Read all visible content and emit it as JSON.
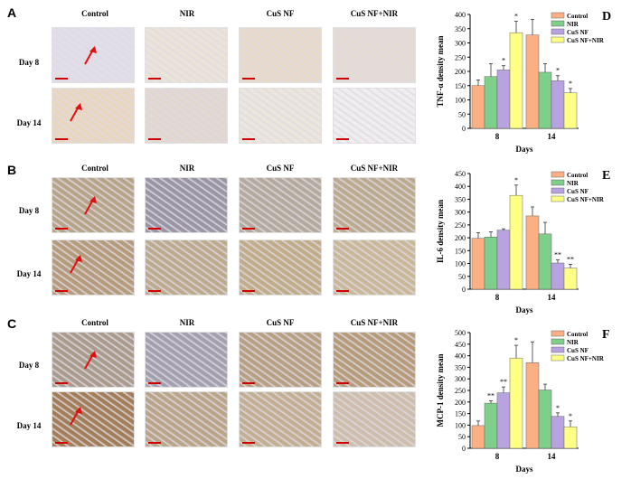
{
  "panels": {
    "A": {
      "label": "A",
      "columns": [
        "Control",
        "NIR",
        "CuS NF",
        "CuS NF+NIR"
      ],
      "rows": [
        "Day 8",
        "Day 14"
      ],
      "tones": [
        [
          "#e2dde8",
          "#ece3d8",
          "#e8dac6",
          "#e5dbd3"
        ],
        [
          "#ead6be",
          "#e2d7cf",
          "#ece6dc",
          "#f0edf0"
        ]
      ]
    },
    "B": {
      "label": "B",
      "columns": [
        "Control",
        "NIR",
        "CuS NF",
        "CuS NF+NIR"
      ],
      "rows": [
        "Day 8",
        "Day 14"
      ],
      "tones": [
        [
          "#b7a488",
          "#9a94a4",
          "#b3a99d",
          "#bcaa8f"
        ],
        [
          "#b59a7b",
          "#bda98c",
          "#c1ab88",
          "#c9b797"
        ]
      ]
    },
    "C": {
      "label": "C",
      "columns": [
        "Control",
        "NIR",
        "CuS NF",
        "CuS NF+NIR"
      ],
      "rows": [
        "Day 8",
        "Day 14"
      ],
      "tones": [
        [
          "#a99a8c",
          "#a49fae",
          "#b79f82",
          "#b69a7a"
        ],
        [
          "#a27d58",
          "#b9a487",
          "#c3ae91",
          "#cdbdaa"
        ]
      ]
    }
  },
  "colors": {
    "control": "#fab083",
    "nir": "#7fce8a",
    "cusnf": "#b8a3e0",
    "cusnf_nir": "#ffff85",
    "arrow": "#e01010"
  },
  "chart_data": [
    {
      "panel": "D",
      "type": "bar",
      "ylabel": "TNF-α density mean",
      "xlabel": "Days",
      "categories": [
        "8",
        "14"
      ],
      "ylim": [
        0,
        400
      ],
      "yticks": [
        0,
        50,
        100,
        150,
        200,
        250,
        300,
        350,
        400
      ],
      "series": [
        {
          "name": "Control",
          "values": [
            150,
            328
          ],
          "errors": [
            20,
            55
          ]
        },
        {
          "name": "NIR",
          "values": [
            182,
            197
          ],
          "errors": [
            45,
            30
          ]
        },
        {
          "name": "CuS NF",
          "values": [
            205,
            167
          ],
          "errors": [
            15,
            18
          ],
          "marks": [
            "*",
            "*"
          ]
        },
        {
          "name": "CuS NF+NIR",
          "values": [
            336,
            125
          ],
          "errors": [
            40,
            15
          ],
          "marks": [
            "*",
            "*"
          ]
        }
      ]
    },
    {
      "panel": "E",
      "type": "bar",
      "ylabel": "IL-6 density mean",
      "xlabel": "Days",
      "categories": [
        "8",
        "14"
      ],
      "ylim": [
        0,
        450
      ],
      "yticks": [
        0,
        50,
        100,
        150,
        200,
        250,
        300,
        350,
        400,
        450
      ],
      "series": [
        {
          "name": "Control",
          "values": [
            198,
            285
          ],
          "errors": [
            22,
            35
          ]
        },
        {
          "name": "NIR",
          "values": [
            203,
            215
          ],
          "errors": [
            20,
            45
          ]
        },
        {
          "name": "CuS NF",
          "values": [
            230,
            102
          ],
          "errors": [
            5,
            12
          ],
          "marks": [
            "",
            "**"
          ]
        },
        {
          "name": "CuS NF+NIR",
          "values": [
            365,
            82
          ],
          "errors": [
            40,
            15
          ],
          "marks": [
            "*",
            "**"
          ]
        }
      ]
    },
    {
      "panel": "F",
      "type": "bar",
      "ylabel": "MCP-1 density mean",
      "xlabel": "Days",
      "categories": [
        "8",
        "14"
      ],
      "ylim": [
        0,
        500
      ],
      "yticks": [
        0,
        50,
        100,
        150,
        200,
        250,
        300,
        350,
        400,
        450,
        500
      ],
      "series": [
        {
          "name": "Control",
          "values": [
            98,
            370
          ],
          "errors": [
            20,
            90
          ]
        },
        {
          "name": "NIR",
          "values": [
            195,
            252
          ],
          "errors": [
            10,
            25
          ],
          "marks": [
            "**",
            ""
          ]
        },
        {
          "name": "CuS NF",
          "values": [
            240,
            138
          ],
          "errors": [
            25,
            15
          ],
          "marks": [
            "**",
            "*"
          ]
        },
        {
          "name": "CuS NF+NIR",
          "values": [
            390,
            93
          ],
          "errors": [
            55,
            25
          ],
          "marks": [
            "*",
            "*"
          ]
        }
      ]
    }
  ]
}
